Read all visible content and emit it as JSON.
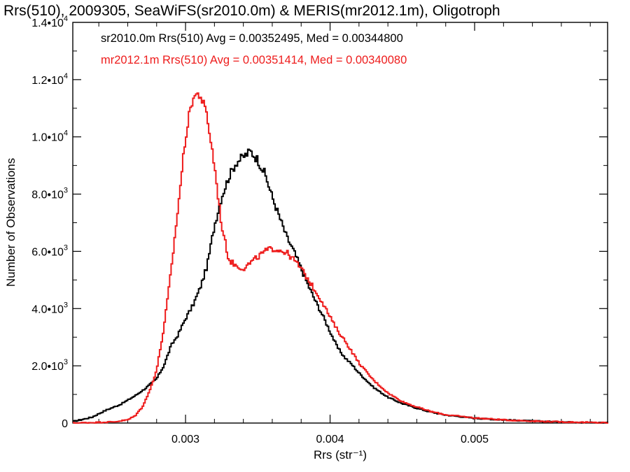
{
  "chart_data": {
    "type": "line",
    "style": "histogram-step",
    "title": "Rrs(510), 2009305, SeaWiFS(sr2010.0m) & MERIS(mr2012.1m), Oligotroph",
    "xlabel": "Rrs (str⁻¹)",
    "ylabel": "Number of Observations",
    "xlim": [
      0.00222,
      0.00592
    ],
    "ylim": [
      0,
      14000
    ],
    "x_ticks": [
      {
        "value": 0.003,
        "label": "0.003"
      },
      {
        "value": 0.004,
        "label": "0.004"
      },
      {
        "value": 0.005,
        "label": "0.005"
      }
    ],
    "y_ticks": [
      {
        "value": 0,
        "mant": "0",
        "exp": ""
      },
      {
        "value": 2000,
        "mant": "2.0•10",
        "exp": "3"
      },
      {
        "value": 4000,
        "mant": "4.0•10",
        "exp": "3"
      },
      {
        "value": 6000,
        "mant": "6.0•10",
        "exp": "3"
      },
      {
        "value": 8000,
        "mant": "8.0•10",
        "exp": "3"
      },
      {
        "value": 10000,
        "mant": "1.0•10",
        "exp": "4"
      },
      {
        "value": 12000,
        "mant": "1.2•10",
        "exp": "4"
      },
      {
        "value": 14000,
        "mant": "1.4•10",
        "exp": "4"
      }
    ],
    "grid": false,
    "legend_position": "top-left",
    "series": [
      {
        "name": "sr2010.0m Rrs(510)",
        "legend": "sr2010.0m Rrs(510) Avg = 0.00352495, Med = 0.00344800",
        "color": "#000000",
        "points": [
          [
            0.00222,
            50
          ],
          [
            0.00235,
            200
          ],
          [
            0.00245,
            450
          ],
          [
            0.00255,
            650
          ],
          [
            0.00265,
            950
          ],
          [
            0.00272,
            1200
          ],
          [
            0.0028,
            1550
          ],
          [
            0.00285,
            2000
          ],
          [
            0.0029,
            2700
          ],
          [
            0.00295,
            3100
          ],
          [
            0.003,
            3650
          ],
          [
            0.00305,
            4100
          ],
          [
            0.0031,
            4700
          ],
          [
            0.00315,
            5500
          ],
          [
            0.0032,
            6900
          ],
          [
            0.00325,
            7900
          ],
          [
            0.0033,
            8600
          ],
          [
            0.00335,
            9100
          ],
          [
            0.0034,
            9300
          ],
          [
            0.00345,
            9500
          ],
          [
            0.0035,
            9200
          ],
          [
            0.00355,
            8700
          ],
          [
            0.0036,
            7900
          ],
          [
            0.00365,
            7200
          ],
          [
            0.0037,
            6500
          ],
          [
            0.00375,
            6000
          ],
          [
            0.0038,
            5400
          ],
          [
            0.00385,
            4800
          ],
          [
            0.0039,
            4250
          ],
          [
            0.00395,
            3750
          ],
          [
            0.004,
            3200
          ],
          [
            0.00405,
            2650
          ],
          [
            0.0041,
            2300
          ],
          [
            0.00415,
            2050
          ],
          [
            0.0042,
            1750
          ],
          [
            0.00425,
            1500
          ],
          [
            0.0043,
            1250
          ],
          [
            0.0044,
            900
          ],
          [
            0.0045,
            680
          ],
          [
            0.0046,
            520
          ],
          [
            0.0047,
            380
          ],
          [
            0.0048,
            280
          ],
          [
            0.005,
            170
          ],
          [
            0.0052,
            110
          ],
          [
            0.0054,
            70
          ],
          [
            0.0056,
            40
          ],
          [
            0.0058,
            20
          ],
          [
            0.00592,
            10
          ]
        ]
      },
      {
        "name": "mr2012.1m Rrs(510)",
        "legend": "mr2012.1m Rrs(510) Avg = 0.00351414, Med = 0.00340080",
        "color": "#ee1c1c",
        "points": [
          [
            0.00222,
            0
          ],
          [
            0.0025,
            40
          ],
          [
            0.0026,
            110
          ],
          [
            0.00265,
            250
          ],
          [
            0.0027,
            550
          ],
          [
            0.00275,
            1100
          ],
          [
            0.0028,
            1850
          ],
          [
            0.00285,
            3300
          ],
          [
            0.0029,
            5300
          ],
          [
            0.00295,
            7600
          ],
          [
            0.003,
            10000
          ],
          [
            0.00305,
            11400
          ],
          [
            0.0031,
            11500
          ],
          [
            0.00315,
            10700
          ],
          [
            0.0032,
            9000
          ],
          [
            0.00325,
            6900
          ],
          [
            0.0033,
            5700
          ],
          [
            0.00335,
            5500
          ],
          [
            0.0034,
            5400
          ],
          [
            0.00345,
            5600
          ],
          [
            0.0035,
            5800
          ],
          [
            0.00355,
            6000
          ],
          [
            0.0036,
            6100
          ],
          [
            0.00365,
            6050
          ],
          [
            0.0037,
            5950
          ],
          [
            0.00375,
            5700
          ],
          [
            0.0038,
            5400
          ],
          [
            0.00385,
            5000
          ],
          [
            0.0039,
            4600
          ],
          [
            0.00395,
            4200
          ],
          [
            0.004,
            3700
          ],
          [
            0.00405,
            3250
          ],
          [
            0.0041,
            2900
          ],
          [
            0.00415,
            2500
          ],
          [
            0.0042,
            2100
          ],
          [
            0.00425,
            1800
          ],
          [
            0.0043,
            1500
          ],
          [
            0.0044,
            1050
          ],
          [
            0.0045,
            750
          ],
          [
            0.0046,
            560
          ],
          [
            0.0047,
            400
          ],
          [
            0.0048,
            290
          ],
          [
            0.005,
            180
          ],
          [
            0.0052,
            110
          ],
          [
            0.0054,
            70
          ],
          [
            0.0056,
            40
          ],
          [
            0.0058,
            20
          ],
          [
            0.00592,
            10
          ]
        ]
      }
    ]
  }
}
